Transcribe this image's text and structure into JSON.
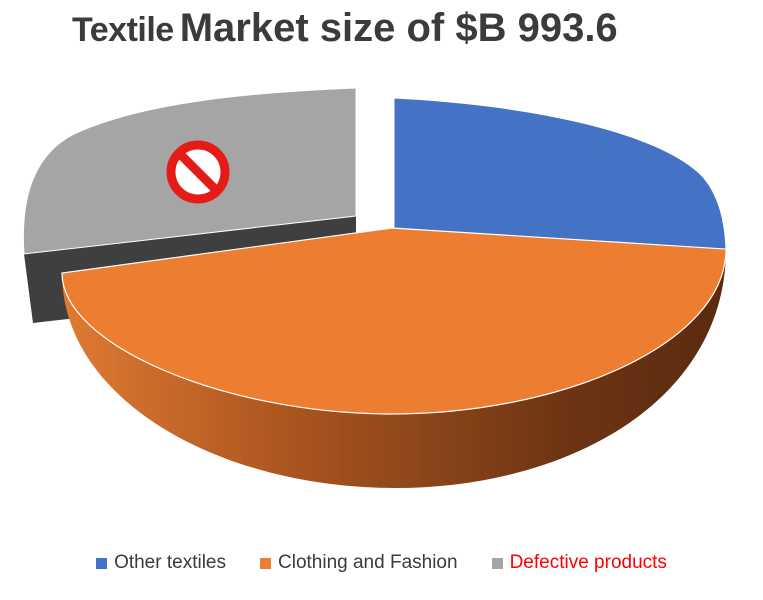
{
  "title": {
    "prefix": "Textile",
    "main": "Market size of $B 993.6"
  },
  "chart_data": {
    "type": "pie",
    "categories": [
      "Other textiles",
      "Clothing and Fashion",
      "Defective products"
    ],
    "values": [
      24,
      50,
      26
    ],
    "colors": [
      "#4472c4",
      "#ed7d31",
      "#a5a5a5"
    ],
    "exploded": [
      "Other textiles",
      "Defective products"
    ],
    "three_d": true,
    "legend_position": "bottom",
    "annotations": [
      {
        "slice": "Defective products",
        "icon": "prohibited-icon"
      }
    ]
  },
  "legend": [
    {
      "label": "Other textiles",
      "color": "#4472c4",
      "text_color": "#3b3b3b"
    },
    {
      "label": "Clothing and Fashion",
      "color": "#ed7d31",
      "text_color": "#3b3b3b"
    },
    {
      "label": "Defective products",
      "color": "#a5a5a5",
      "text_color": "#ff0000"
    }
  ]
}
